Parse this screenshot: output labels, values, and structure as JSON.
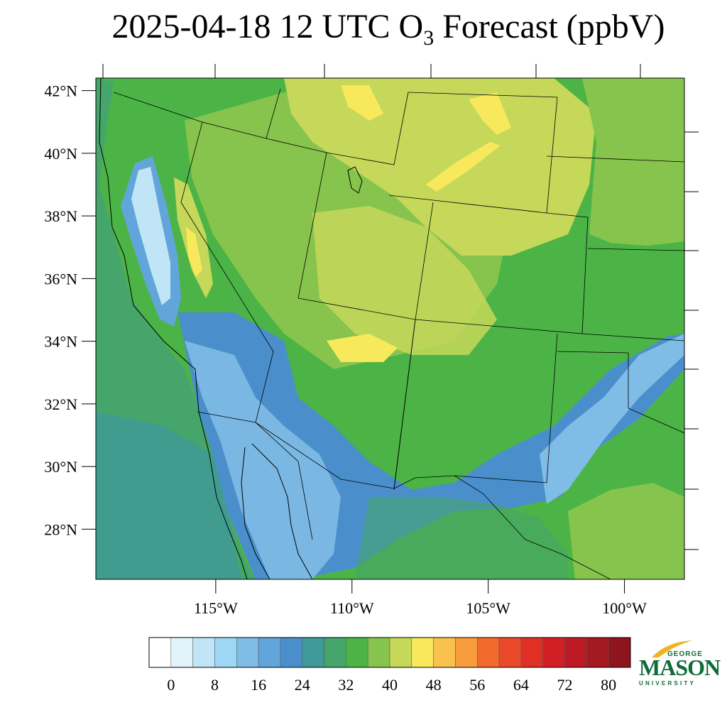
{
  "title": {
    "prefix": "2025-04-18 12 UTC O",
    "subscript": "3",
    "suffix": " Forecast (ppbV)"
  },
  "map": {
    "lat_range": [
      26.4,
      42.4
    ],
    "lon_range": [
      -119.4,
      -97.8
    ],
    "lat_ticks": [
      {
        "value": 42,
        "label": "42°N"
      },
      {
        "value": 40,
        "label": "40°N"
      },
      {
        "value": 38,
        "label": "38°N"
      },
      {
        "value": 36,
        "label": "36°N"
      },
      {
        "value": 34,
        "label": "34°N"
      },
      {
        "value": 32,
        "label": "32°N"
      },
      {
        "value": 30,
        "label": "30°N"
      },
      {
        "value": 28,
        "label": "28°N"
      }
    ],
    "lon_ticks": [
      {
        "value": -115,
        "label": "115°W"
      },
      {
        "value": -110,
        "label": "110°W"
      },
      {
        "value": -105,
        "label": "105°W"
      },
      {
        "value": -100,
        "label": "100°W"
      }
    ]
  },
  "colorbar": {
    "colors": [
      "#ffffff",
      "#e1f3fb",
      "#bfe5f7",
      "#9dd7f3",
      "#80bde6",
      "#62a5da",
      "#4a8fcb",
      "#3f9a99",
      "#46a56a",
      "#4cb447",
      "#86c44d",
      "#c5d85a",
      "#f8e85c",
      "#f9c14d",
      "#f79d3e",
      "#f26a2e",
      "#ea4a2a",
      "#e03026",
      "#d21f26",
      "#bc1a24",
      "#a51920",
      "#8d151b"
    ],
    "tick_labels": [
      {
        "index": 1,
        "label": "0"
      },
      {
        "index": 3,
        "label": "8"
      },
      {
        "index": 5,
        "label": "16"
      },
      {
        "index": 7,
        "label": "24"
      },
      {
        "index": 9,
        "label": "32"
      },
      {
        "index": 11,
        "label": "40"
      },
      {
        "index": 13,
        "label": "48"
      },
      {
        "index": 15,
        "label": "56"
      },
      {
        "index": 17,
        "label": "64"
      },
      {
        "index": 19,
        "label": "72"
      },
      {
        "index": 21,
        "label": "80"
      }
    ]
  },
  "logo": {
    "top": "GEORGE",
    "main": "MASON",
    "bottom": "UNIVERSITY",
    "color": "#0f6b3a",
    "accent": "#f0b323"
  }
}
